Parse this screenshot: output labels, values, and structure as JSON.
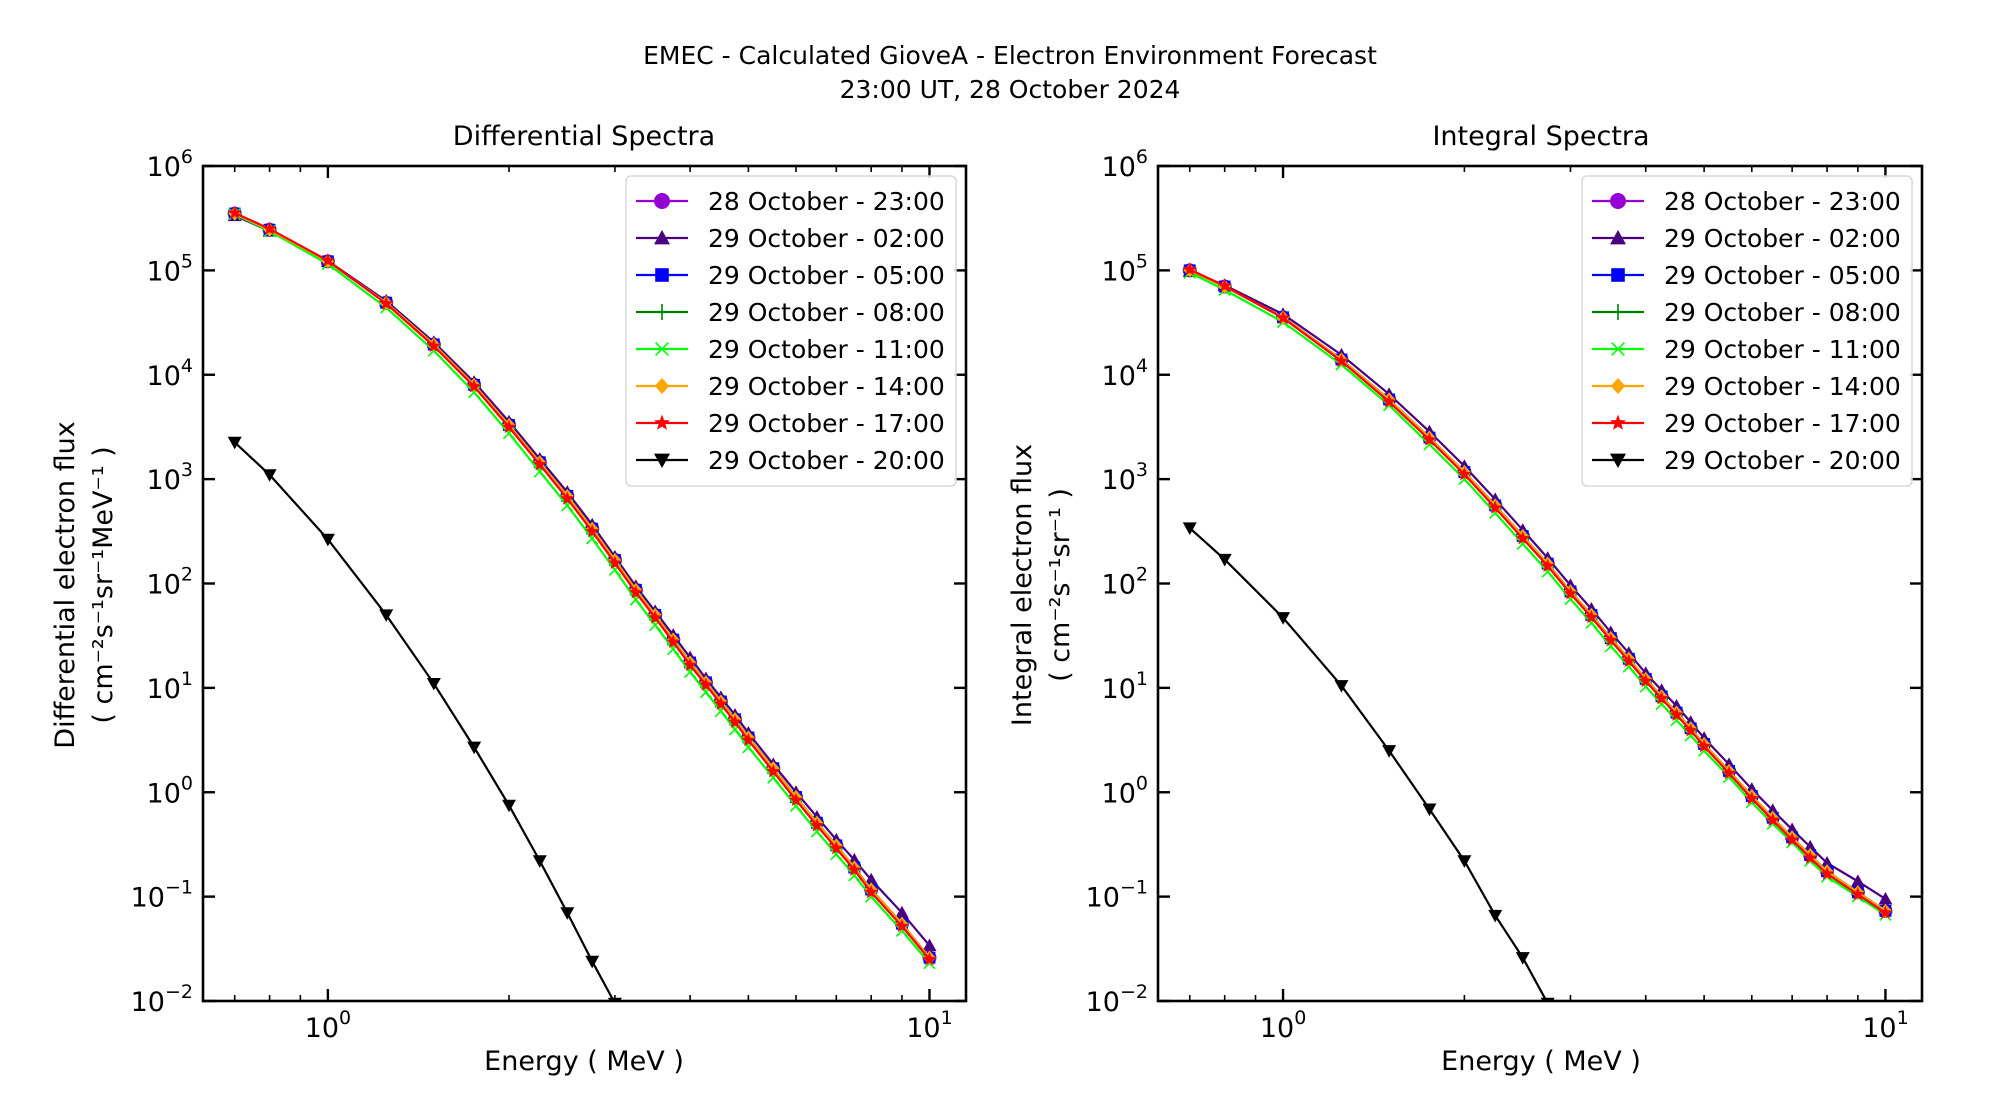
{
  "figure": {
    "suptitle_line1": "EMEC - Calculated GioveA - Electron Environment Forecast",
    "suptitle_line2": "23:00 UT, 28 October 2024"
  },
  "chart_data": [
    {
      "type": "line",
      "title": "Differential Spectra",
      "xlabel": "Energy ( MeV )",
      "ylabel_line1": "Differential electron flux",
      "ylabel_line2": "( cm⁻²s⁻¹sr⁻¹MeV⁻¹ )",
      "xscale": "log",
      "yscale": "log",
      "xlim": [
        0.62,
        11.5
      ],
      "ylim": [
        0.01,
        1000000
      ],
      "xticks": [
        {
          "value": 1,
          "base": "10",
          "exp": "0"
        },
        {
          "value": 10,
          "base": "10",
          "exp": "1"
        }
      ],
      "yticks": [
        {
          "value": 1000000,
          "base": "10",
          "exp": "6"
        },
        {
          "value": 100000,
          "base": "10",
          "exp": "5"
        },
        {
          "value": 10000,
          "base": "10",
          "exp": "4"
        },
        {
          "value": 1000,
          "base": "10",
          "exp": "3"
        },
        {
          "value": 100,
          "base": "10",
          "exp": "2"
        },
        {
          "value": 10,
          "base": "10",
          "exp": "1"
        },
        {
          "value": 1,
          "base": "10",
          "exp": "0"
        },
        {
          "value": 0.1,
          "base": "10",
          "exp": "−1"
        },
        {
          "value": 0.01,
          "base": "10",
          "exp": "−2"
        }
      ],
      "grid": false,
      "legend_position": "top-right",
      "x": [
        0.7,
        0.8,
        1.0,
        1.25,
        1.5,
        1.75,
        2.0,
        2.25,
        2.5,
        2.75,
        3.0,
        3.25,
        3.5,
        3.75,
        4.0,
        4.25,
        4.5,
        4.75,
        5.0,
        5.5,
        6.0,
        6.5,
        7.0,
        7.5,
        8.0,
        9.0,
        10.0
      ],
      "series": [
        {
          "name": "28 October - 23:00",
          "color": "#9400d3",
          "marker": "circle",
          "values": [
            350000,
            245000,
            122000,
            49000,
            19500,
            8000,
            3300,
            1450,
            690,
            335,
            168,
            87,
            50,
            29,
            17.5,
            11.3,
            7.4,
            5.0,
            3.35,
            1.7,
            0.9,
            0.51,
            0.31,
            0.19,
            0.117,
            0.055,
            0.026
          ]
        },
        {
          "name": "29 October - 02:00",
          "color": "#4b0082",
          "marker": "triangle-up",
          "values": [
            335000,
            238000,
            123000,
            51000,
            20500,
            8500,
            3550,
            1560,
            750,
            365,
            180,
            94,
            54,
            32,
            19.5,
            12.3,
            8.1,
            5.5,
            3.7,
            1.85,
            1.0,
            0.58,
            0.35,
            0.225,
            0.145,
            0.07,
            0.034
          ]
        },
        {
          "name": "29 October - 05:00",
          "color": "#0000ff",
          "marker": "square",
          "values": [
            350000,
            245000,
            122000,
            49000,
            19500,
            8000,
            3300,
            1450,
            690,
            335,
            168,
            87,
            50,
            29,
            17.5,
            11.3,
            7.4,
            5.0,
            3.35,
            1.7,
            0.9,
            0.51,
            0.31,
            0.19,
            0.117,
            0.055,
            0.026
          ]
        },
        {
          "name": "29 October - 08:00",
          "color": "#008000",
          "marker": "plus",
          "values": [
            350000,
            245000,
            122000,
            49000,
            19500,
            8000,
            3300,
            1450,
            690,
            335,
            168,
            87,
            50,
            29,
            17.5,
            11.3,
            7.4,
            5.0,
            3.35,
            1.7,
            0.9,
            0.51,
            0.31,
            0.19,
            0.117,
            0.055,
            0.026
          ]
        },
        {
          "name": "29 October - 11:00",
          "color": "#00ff00",
          "marker": "x",
          "values": [
            345000,
            238000,
            115000,
            44000,
            17000,
            6800,
            2750,
            1180,
            560,
            270,
            135,
            70,
            40,
            23.5,
            14.2,
            9.1,
            6.0,
            4.0,
            2.7,
            1.38,
            0.74,
            0.42,
            0.255,
            0.16,
            0.1,
            0.047,
            0.023
          ]
        },
        {
          "name": "29 October - 14:00",
          "color": "#ffa500",
          "marker": "diamond",
          "values": [
            350000,
            245000,
            122000,
            49000,
            19500,
            8000,
            3300,
            1450,
            690,
            335,
            168,
            87,
            50,
            29,
            17.5,
            11.3,
            7.4,
            5.0,
            3.35,
            1.7,
            0.9,
            0.51,
            0.31,
            0.19,
            0.117,
            0.055,
            0.026
          ]
        },
        {
          "name": "29 October - 17:00",
          "color": "#ff0000",
          "marker": "star",
          "values": [
            355000,
            250000,
            124000,
            48000,
            18800,
            7700,
            3150,
            1380,
            650,
            315,
            157,
            82,
            47,
            27.5,
            16.5,
            10.7,
            7.0,
            4.7,
            3.15,
            1.58,
            0.84,
            0.48,
            0.29,
            0.18,
            0.11,
            0.052,
            0.025
          ]
        },
        {
          "name": "29 October - 20:00",
          "color": "#000000",
          "marker": "triangle-down",
          "values": [
            2250,
            1100,
            265,
            50,
            11,
            2.7,
            0.75,
            0.22,
            0.07,
            0.024,
            0.0095
          ]
        }
      ]
    },
    {
      "type": "line",
      "title": "Integral Spectra",
      "xlabel": "Energy ( MeV )",
      "ylabel_line1": "Integral electron flux",
      "ylabel_line2": "( cm⁻²s⁻¹sr⁻¹ )",
      "xscale": "log",
      "yscale": "log",
      "xlim": [
        0.62,
        11.5
      ],
      "ylim": [
        0.01,
        1000000
      ],
      "xticks": [
        {
          "value": 1,
          "base": "10",
          "exp": "0"
        },
        {
          "value": 10,
          "base": "10",
          "exp": "1"
        }
      ],
      "yticks": [
        {
          "value": 1000000,
          "base": "10",
          "exp": "6"
        },
        {
          "value": 100000,
          "base": "10",
          "exp": "5"
        },
        {
          "value": 10000,
          "base": "10",
          "exp": "4"
        },
        {
          "value": 1000,
          "base": "10",
          "exp": "3"
        },
        {
          "value": 100,
          "base": "10",
          "exp": "2"
        },
        {
          "value": 10,
          "base": "10",
          "exp": "1"
        },
        {
          "value": 1,
          "base": "10",
          "exp": "0"
        },
        {
          "value": 0.1,
          "base": "10",
          "exp": "−1"
        },
        {
          "value": 0.01,
          "base": "10",
          "exp": "−2"
        }
      ],
      "grid": false,
      "legend_position": "top-right",
      "x": [
        0.7,
        0.8,
        1.0,
        1.25,
        1.5,
        1.75,
        2.0,
        2.25,
        2.5,
        2.75,
        3.0,
        3.25,
        3.5,
        3.75,
        4.0,
        4.25,
        4.5,
        4.75,
        5.0,
        5.5,
        6.0,
        6.5,
        7.0,
        7.5,
        8.0,
        9.0,
        10.0
      ],
      "series": [
        {
          "name": "28 October - 23:00",
          "color": "#9400d3",
          "marker": "circle",
          "values": [
            100000,
            70000,
            35500,
            14000,
            5800,
            2500,
            1170,
            560,
            285,
            155,
            84,
            50,
            30,
            19,
            12.2,
            8.3,
            5.8,
            4.1,
            2.9,
            1.6,
            0.92,
            0.57,
            0.37,
            0.25,
            0.175,
            0.11,
            0.073
          ]
        },
        {
          "name": "29 October - 02:00",
          "color": "#4b0082",
          "marker": "triangle-up",
          "values": [
            98000,
            72000,
            38000,
            15500,
            6500,
            2850,
            1330,
            640,
            325,
            175,
            96,
            57,
            34,
            21.5,
            13.8,
            9.5,
            6.7,
            4.7,
            3.3,
            1.85,
            1.07,
            0.67,
            0.44,
            0.3,
            0.21,
            0.14,
            0.095
          ]
        },
        {
          "name": "29 October - 05:00",
          "color": "#0000ff",
          "marker": "square",
          "values": [
            100000,
            70000,
            35500,
            14000,
            5800,
            2500,
            1170,
            560,
            285,
            155,
            84,
            50,
            30,
            19,
            12.2,
            8.3,
            5.8,
            4.1,
            2.9,
            1.6,
            0.92,
            0.57,
            0.37,
            0.25,
            0.175,
            0.11,
            0.073
          ]
        },
        {
          "name": "29 October - 08:00",
          "color": "#008000",
          "marker": "plus",
          "values": [
            100000,
            70000,
            35500,
            14000,
            5800,
            2500,
            1170,
            560,
            285,
            155,
            84,
            50,
            30,
            19,
            12.2,
            8.3,
            5.8,
            4.1,
            2.9,
            1.6,
            0.92,
            0.57,
            0.37,
            0.25,
            0.175,
            0.11,
            0.073
          ]
        },
        {
          "name": "29 October - 11:00",
          "color": "#00ff00",
          "marker": "x",
          "values": [
            95000,
            65000,
            32000,
            12500,
            5100,
            2150,
            1000,
            475,
            240,
            130,
            71,
            42,
            25,
            16,
            10.3,
            7.0,
            4.9,
            3.5,
            2.5,
            1.4,
            0.8,
            0.5,
            0.33,
            0.22,
            0.155,
            0.1,
            0.067
          ]
        },
        {
          "name": "29 October - 14:00",
          "color": "#ffa500",
          "marker": "diamond",
          "values": [
            100000,
            70000,
            35500,
            14000,
            5800,
            2500,
            1170,
            560,
            285,
            155,
            84,
            50,
            30,
            19,
            12.2,
            8.3,
            5.8,
            4.1,
            2.9,
            1.6,
            0.92,
            0.57,
            0.37,
            0.25,
            0.175,
            0.11,
            0.073
          ]
        },
        {
          "name": "29 October - 17:00",
          "color": "#ff0000",
          "marker": "star",
          "values": [
            102000,
            71000,
            35000,
            13500,
            5500,
            2380,
            1110,
            530,
            270,
            147,
            80,
            47.5,
            28.5,
            18,
            11.6,
            7.9,
            5.5,
            3.9,
            2.75,
            1.52,
            0.87,
            0.54,
            0.35,
            0.235,
            0.165,
            0.105,
            0.07
          ]
        },
        {
          "name": "29 October - 20:00",
          "color": "#000000",
          "marker": "triangle-down",
          "values": [
            340,
            170,
            47,
            10.5,
            2.5,
            0.69,
            0.22,
            0.066,
            0.026,
            0.0095
          ]
        }
      ]
    }
  ]
}
